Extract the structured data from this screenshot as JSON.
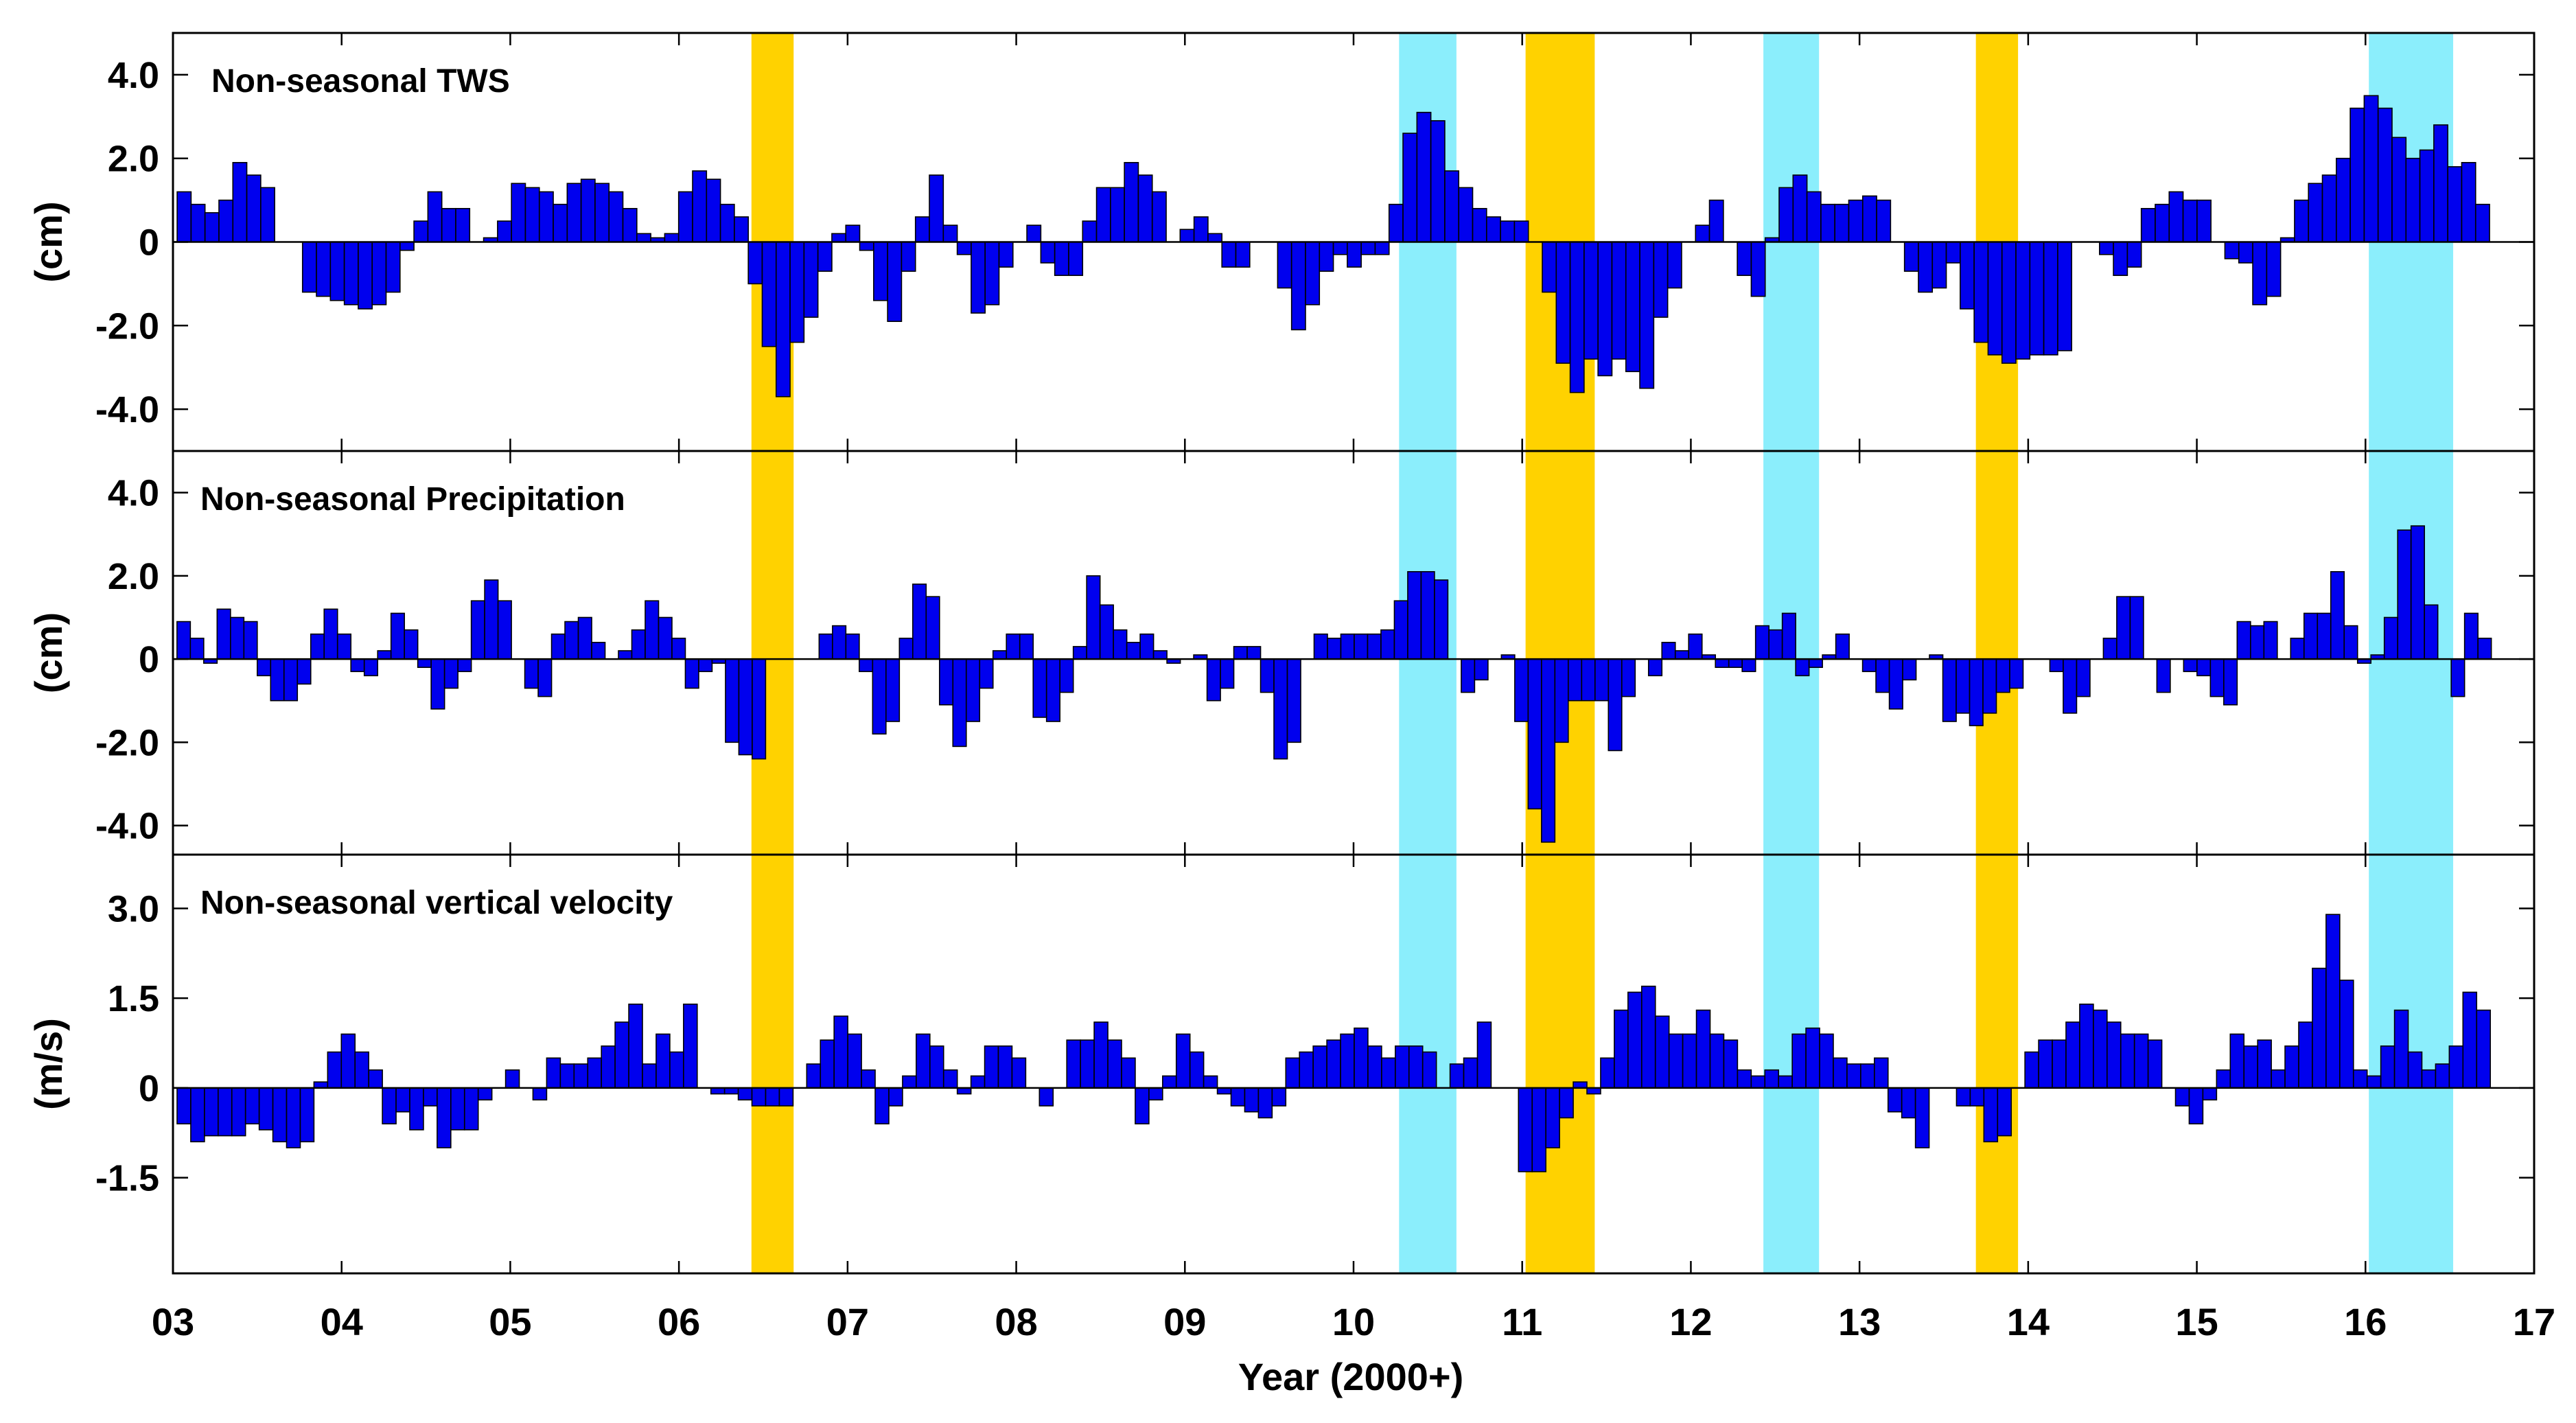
{
  "chart_data": {
    "type": "bar",
    "x_axis": {
      "label": "Year (2000+)",
      "range": [
        2003,
        2017
      ],
      "ticks": [
        "03",
        "04",
        "05",
        "06",
        "07",
        "08",
        "09",
        "10",
        "11",
        "12",
        "13",
        "14",
        "15",
        "16",
        "17"
      ]
    },
    "colors": {
      "bar": "#0000ee",
      "dry_event": "#ffd200",
      "wet_event": "#8beefc"
    },
    "events": [
      {
        "type": "dry",
        "start": 2006.43,
        "end": 2006.68
      },
      {
        "type": "wet",
        "start": 2010.27,
        "end": 2010.61
      },
      {
        "type": "dry",
        "start": 2011.02,
        "end": 2011.43
      },
      {
        "type": "wet",
        "start": 2012.43,
        "end": 2012.76
      },
      {
        "type": "dry",
        "start": 2013.69,
        "end": 2013.94
      },
      {
        "type": "wet",
        "start": 2016.02,
        "end": 2016.52
      }
    ],
    "panels": [
      {
        "title": "Non-seasonal TWS",
        "ylabel": "(cm)",
        "ylim": [
          -5,
          5
        ],
        "yticks": [
          4.0,
          2.0,
          0,
          -2.0,
          -4.0
        ],
        "ytick_labels": [
          "4.0",
          "2.0",
          "0",
          "-2.0",
          "-4.0"
        ],
        "values": [
          1.2,
          0.9,
          0.7,
          1.0,
          1.9,
          1.6,
          1.3,
          0.0,
          0.0,
          -1.2,
          -1.3,
          -1.4,
          -1.5,
          -1.6,
          -1.5,
          -1.2,
          -0.2,
          0.5,
          1.2,
          0.8,
          0.8,
          0.0,
          0.1,
          0.5,
          1.4,
          1.3,
          1.2,
          0.9,
          1.4,
          1.5,
          1.4,
          1.2,
          0.8,
          0.2,
          0.1,
          0.2,
          1.2,
          1.7,
          1.5,
          0.9,
          0.6,
          -1.0,
          -2.5,
          -3.7,
          -2.4,
          -1.8,
          -0.7,
          0.2,
          0.4,
          -0.2,
          -1.4,
          -1.9,
          -0.7,
          0.6,
          1.6,
          0.4,
          -0.3,
          -1.7,
          -1.5,
          -0.6,
          0.0,
          0.4,
          -0.5,
          -0.8,
          -0.8,
          0.5,
          1.3,
          1.3,
          1.9,
          1.6,
          1.2,
          0.0,
          0.3,
          0.6,
          0.2,
          -0.6,
          -0.6,
          0.0,
          0.0,
          -1.1,
          -2.1,
          -1.5,
          -0.7,
          -0.3,
          -0.6,
          -0.3,
          -0.3,
          0.9,
          2.6,
          3.1,
          2.9,
          1.7,
          1.3,
          0.8,
          0.6,
          0.5,
          0.5,
          0.0,
          -1.2,
          -2.9,
          -3.6,
          -2.8,
          -3.2,
          -2.8,
          -3.1,
          -3.5,
          -1.8,
          -1.1,
          0.0,
          0.4,
          1.0,
          0.0,
          -0.8,
          -1.3,
          0.1,
          1.3,
          1.6,
          1.2,
          0.9,
          0.9,
          1.0,
          1.1,
          1.0,
          0.0,
          -0.7,
          -1.2,
          -1.1,
          -0.5,
          -1.6,
          -2.4,
          -2.7,
          -2.9,
          -2.8,
          -2.7,
          -2.7,
          -2.6,
          0.0,
          0.0,
          -0.3,
          -0.8,
          -0.6,
          0.8,
          0.9,
          1.2,
          1.0,
          1.0,
          0.0,
          -0.4,
          -0.5,
          -1.5,
          -1.3,
          0.1,
          1.0,
          1.4,
          1.6,
          2.0,
          3.2,
          3.5,
          3.2,
          2.5,
          2.0,
          2.2,
          2.8,
          1.8,
          1.9,
          0.9
        ]
      },
      {
        "title": "Non-seasonal Precipitation",
        "ylabel": "(cm)",
        "ylim": [
          -4.7,
          5
        ],
        "yticks": [
          4.0,
          2.0,
          0,
          -2.0,
          -4.0
        ],
        "ytick_labels": [
          "4.0",
          "2.0",
          "0",
          "-2.0",
          "-4.0"
        ],
        "values": [
          0.9,
          0.5,
          -0.1,
          1.2,
          1.0,
          0.9,
          -0.4,
          -1.0,
          -1.0,
          -0.6,
          0.6,
          1.2,
          0.6,
          -0.3,
          -0.4,
          0.2,
          1.1,
          0.7,
          -0.2,
          -1.2,
          -0.7,
          -0.3,
          1.4,
          1.9,
          1.4,
          0.0,
          -0.7,
          -0.9,
          0.6,
          0.9,
          1.0,
          0.4,
          0.0,
          0.2,
          0.7,
          1.4,
          1.0,
          0.5,
          -0.7,
          -0.3,
          -0.1,
          -2.0,
          -2.3,
          -2.4,
          0.0,
          0.0,
          0.0,
          0.0,
          0.6,
          0.8,
          0.6,
          -0.3,
          -1.8,
          -1.5,
          0.5,
          1.8,
          1.5,
          -1.1,
          -2.1,
          -1.5,
          -0.7,
          0.2,
          0.6,
          0.6,
          -1.4,
          -1.5,
          -0.8,
          0.3,
          2.0,
          1.3,
          0.7,
          0.4,
          0.6,
          0.2,
          -0.1,
          0.0,
          0.1,
          -1.0,
          -0.7,
          0.3,
          0.3,
          -0.8,
          -2.4,
          -2.0,
          0.0,
          0.6,
          0.5,
          0.6,
          0.6,
          0.6,
          0.7,
          1.4,
          2.1,
          2.1,
          1.9,
          0.0,
          -0.8,
          -0.5,
          0.0,
          0.1,
          -1.5,
          -3.6,
          -4.4,
          -2.0,
          -1.0,
          -1.0,
          -1.0,
          -2.2,
          -0.9,
          0.0,
          -0.4,
          0.4,
          0.2,
          0.6,
          0.1,
          -0.2,
          -0.2,
          -0.3,
          0.8,
          0.7,
          1.1,
          -0.4,
          -0.2,
          0.1,
          0.6,
          0.0,
          -0.3,
          -0.8,
          -1.2,
          -0.5,
          0.0,
          0.1,
          -1.5,
          -1.3,
          -1.6,
          -1.3,
          -0.8,
          -0.7,
          0.0,
          0.0,
          -0.3,
          -1.3,
          -0.9,
          0.0,
          0.5,
          1.5,
          1.5,
          0.0,
          -0.8,
          0.0,
          -0.3,
          -0.4,
          -0.9,
          -1.1,
          0.9,
          0.8,
          0.9,
          0.0,
          0.5,
          1.1,
          1.1,
          2.1,
          0.8,
          -0.1,
          0.1,
          1.0,
          3.1,
          3.2,
          1.3,
          0.0,
          -0.9,
          1.1,
          0.5
        ]
      },
      {
        "title": "Non-seasonal vertical velocity",
        "ylabel": "(m/s)",
        "ylim": [
          -3.1,
          3.9
        ],
        "yticks": [
          3.0,
          1.5,
          0,
          -1.5
        ],
        "ytick_labels": [
          "3.0",
          "1.5",
          "0",
          "-1.5"
        ],
        "values": [
          -0.6,
          -0.9,
          -0.8,
          -0.8,
          -0.8,
          -0.6,
          -0.7,
          -0.9,
          -1.0,
          -0.9,
          0.1,
          0.6,
          0.9,
          0.6,
          0.3,
          -0.6,
          -0.4,
          -0.7,
          -0.3,
          -1.0,
          -0.7,
          -0.7,
          -0.2,
          0.0,
          0.3,
          0.0,
          -0.2,
          0.5,
          0.4,
          0.4,
          0.5,
          0.7,
          1.1,
          1.4,
          0.4,
          0.9,
          0.6,
          1.4,
          0.0,
          -0.1,
          -0.1,
          -0.2,
          -0.3,
          -0.3,
          -0.3,
          0.0,
          0.4,
          0.8,
          1.2,
          0.9,
          0.3,
          -0.6,
          -0.3,
          0.2,
          0.9,
          0.7,
          0.3,
          -0.1,
          0.2,
          0.7,
          0.7,
          0.5,
          0.0,
          -0.3,
          0.0,
          0.8,
          0.8,
          1.1,
          0.8,
          0.5,
          -0.6,
          -0.2,
          0.2,
          0.9,
          0.6,
          0.2,
          -0.1,
          -0.3,
          -0.4,
          -0.5,
          -0.3,
          0.5,
          0.6,
          0.7,
          0.8,
          0.9,
          1.0,
          0.7,
          0.5,
          0.7,
          0.7,
          0.6,
          0.0,
          0.4,
          0.5,
          1.1,
          0.0,
          0.0,
          -1.4,
          -1.4,
          -1.0,
          -0.5,
          0.1,
          -0.1,
          0.5,
          1.3,
          1.6,
          1.7,
          1.2,
          0.9,
          0.9,
          1.3,
          0.9,
          0.8,
          0.3,
          0.2,
          0.3,
          0.2,
          0.9,
          1.0,
          0.9,
          0.5,
          0.4,
          0.4,
          0.5,
          -0.4,
          -0.5,
          -1.0,
          0.0,
          0.0,
          -0.3,
          -0.3,
          -0.9,
          -0.8,
          0.0,
          0.6,
          0.8,
          0.8,
          1.1,
          1.4,
          1.3,
          1.1,
          0.9,
          0.9,
          0.8,
          0.0,
          -0.3,
          -0.6,
          -0.2,
          0.3,
          0.9,
          0.7,
          0.8,
          0.3,
          0.7,
          1.1,
          2.0,
          2.9,
          1.8,
          0.3,
          0.2,
          0.7,
          1.3,
          0.6,
          0.3,
          0.4,
          0.7,
          1.6,
          1.3
        ]
      }
    ]
  }
}
